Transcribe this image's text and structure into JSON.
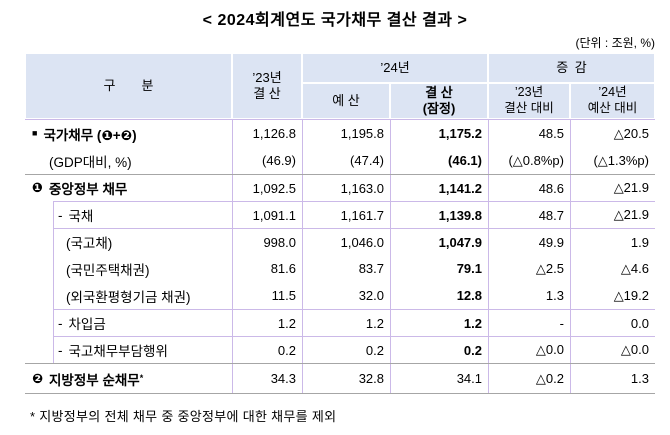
{
  "title": "<  2024회계연도 국가채무 결산 결과  >",
  "unit_label": "(단위 : 조원, %)",
  "footnote": "* 지방정부의 전체 채무 중 중앙정부에 대한 채무를 제외",
  "colors": {
    "header_bg": "#dce4f3",
    "grid_purple": "#cbb9e8",
    "line_gray": "#a6a6a6",
    "text": "#000000"
  },
  "table": {
    "columns": {
      "category": "구  분",
      "y2023_settlement": "’23년\n결 산",
      "y2024_group": "’24년",
      "change_group": "증 감",
      "y2024_budget": "예 산",
      "y2024_settlement": "결 산\n(잠정)",
      "vs_2023": "’23년\n결산 대비",
      "vs_2024": "’24년\n예산 대비"
    },
    "rows": [
      {
        "bullet": "■",
        "label": "국가채무 (❶+❷)",
        "sup": "",
        "style": "h1",
        "sep": "none",
        "bold_settlement": true,
        "values": [
          "1,126.8",
          "1,195.8",
          "1,175.2",
          "48.5",
          "△20.5"
        ]
      },
      {
        "bullet": "",
        "label": "(GDP대비, %)",
        "sup": "",
        "style": "note",
        "sep": "none",
        "bold_settlement": true,
        "values": [
          "(46.9)",
          "(47.4)",
          "(46.1)",
          "(△0.8%p)",
          "(△1.3%p)"
        ]
      },
      {
        "bullet": "❶",
        "label": "중앙정부 채무",
        "sup": "",
        "style": "h2",
        "sep": "gray",
        "bold_settlement": true,
        "values": [
          "1,092.5",
          "1,163.0",
          "1,141.2",
          "48.6",
          "△21.9"
        ]
      },
      {
        "bullet": "-",
        "label": "국채",
        "sup": "",
        "style": "dash",
        "sep": "purple",
        "bold_settlement": true,
        "values": [
          "1,091.1",
          "1,161.7",
          "1,139.8",
          "48.7",
          "△21.9"
        ]
      },
      {
        "bullet": "",
        "label": "(국고채)",
        "sup": "",
        "style": "paren",
        "sep": "purple",
        "bold_settlement": true,
        "values": [
          "998.0",
          "1,046.0",
          "1,047.9",
          "49.9",
          "1.9"
        ]
      },
      {
        "bullet": "",
        "label": "(국민주택채권)",
        "sup": "",
        "style": "paren",
        "sep": "none",
        "bold_settlement": true,
        "values": [
          "81.6",
          "83.7",
          "79.1",
          "△2.5",
          "△4.6"
        ]
      },
      {
        "bullet": "",
        "label": "(외국환평형기금 채권)",
        "sup": "",
        "style": "paren",
        "sep": "none",
        "bold_settlement": true,
        "values": [
          "11.5",
          "32.0",
          "12.8",
          "1.3",
          "△19.2"
        ]
      },
      {
        "bullet": "-",
        "label": "차입금",
        "sup": "",
        "style": "dash",
        "sep": "purple",
        "bold_settlement": true,
        "values": [
          "1.2",
          "1.2",
          "1.2",
          "-",
          "0.0"
        ]
      },
      {
        "bullet": "-",
        "label": "국고채무부담행위",
        "sup": "",
        "style": "dash",
        "sep": "purple",
        "bold_settlement": true,
        "values": [
          "0.2",
          "0.2",
          "0.2",
          "△0.0",
          "△0.0"
        ]
      },
      {
        "bullet": "❷",
        "label": "지방정부 순채무",
        "sup": "*",
        "style": "h2",
        "sep": "gray",
        "bold_settlement": false,
        "values": [
          "34.3",
          "32.8",
          "34.1",
          "△0.2",
          "1.3"
        ]
      }
    ]
  }
}
